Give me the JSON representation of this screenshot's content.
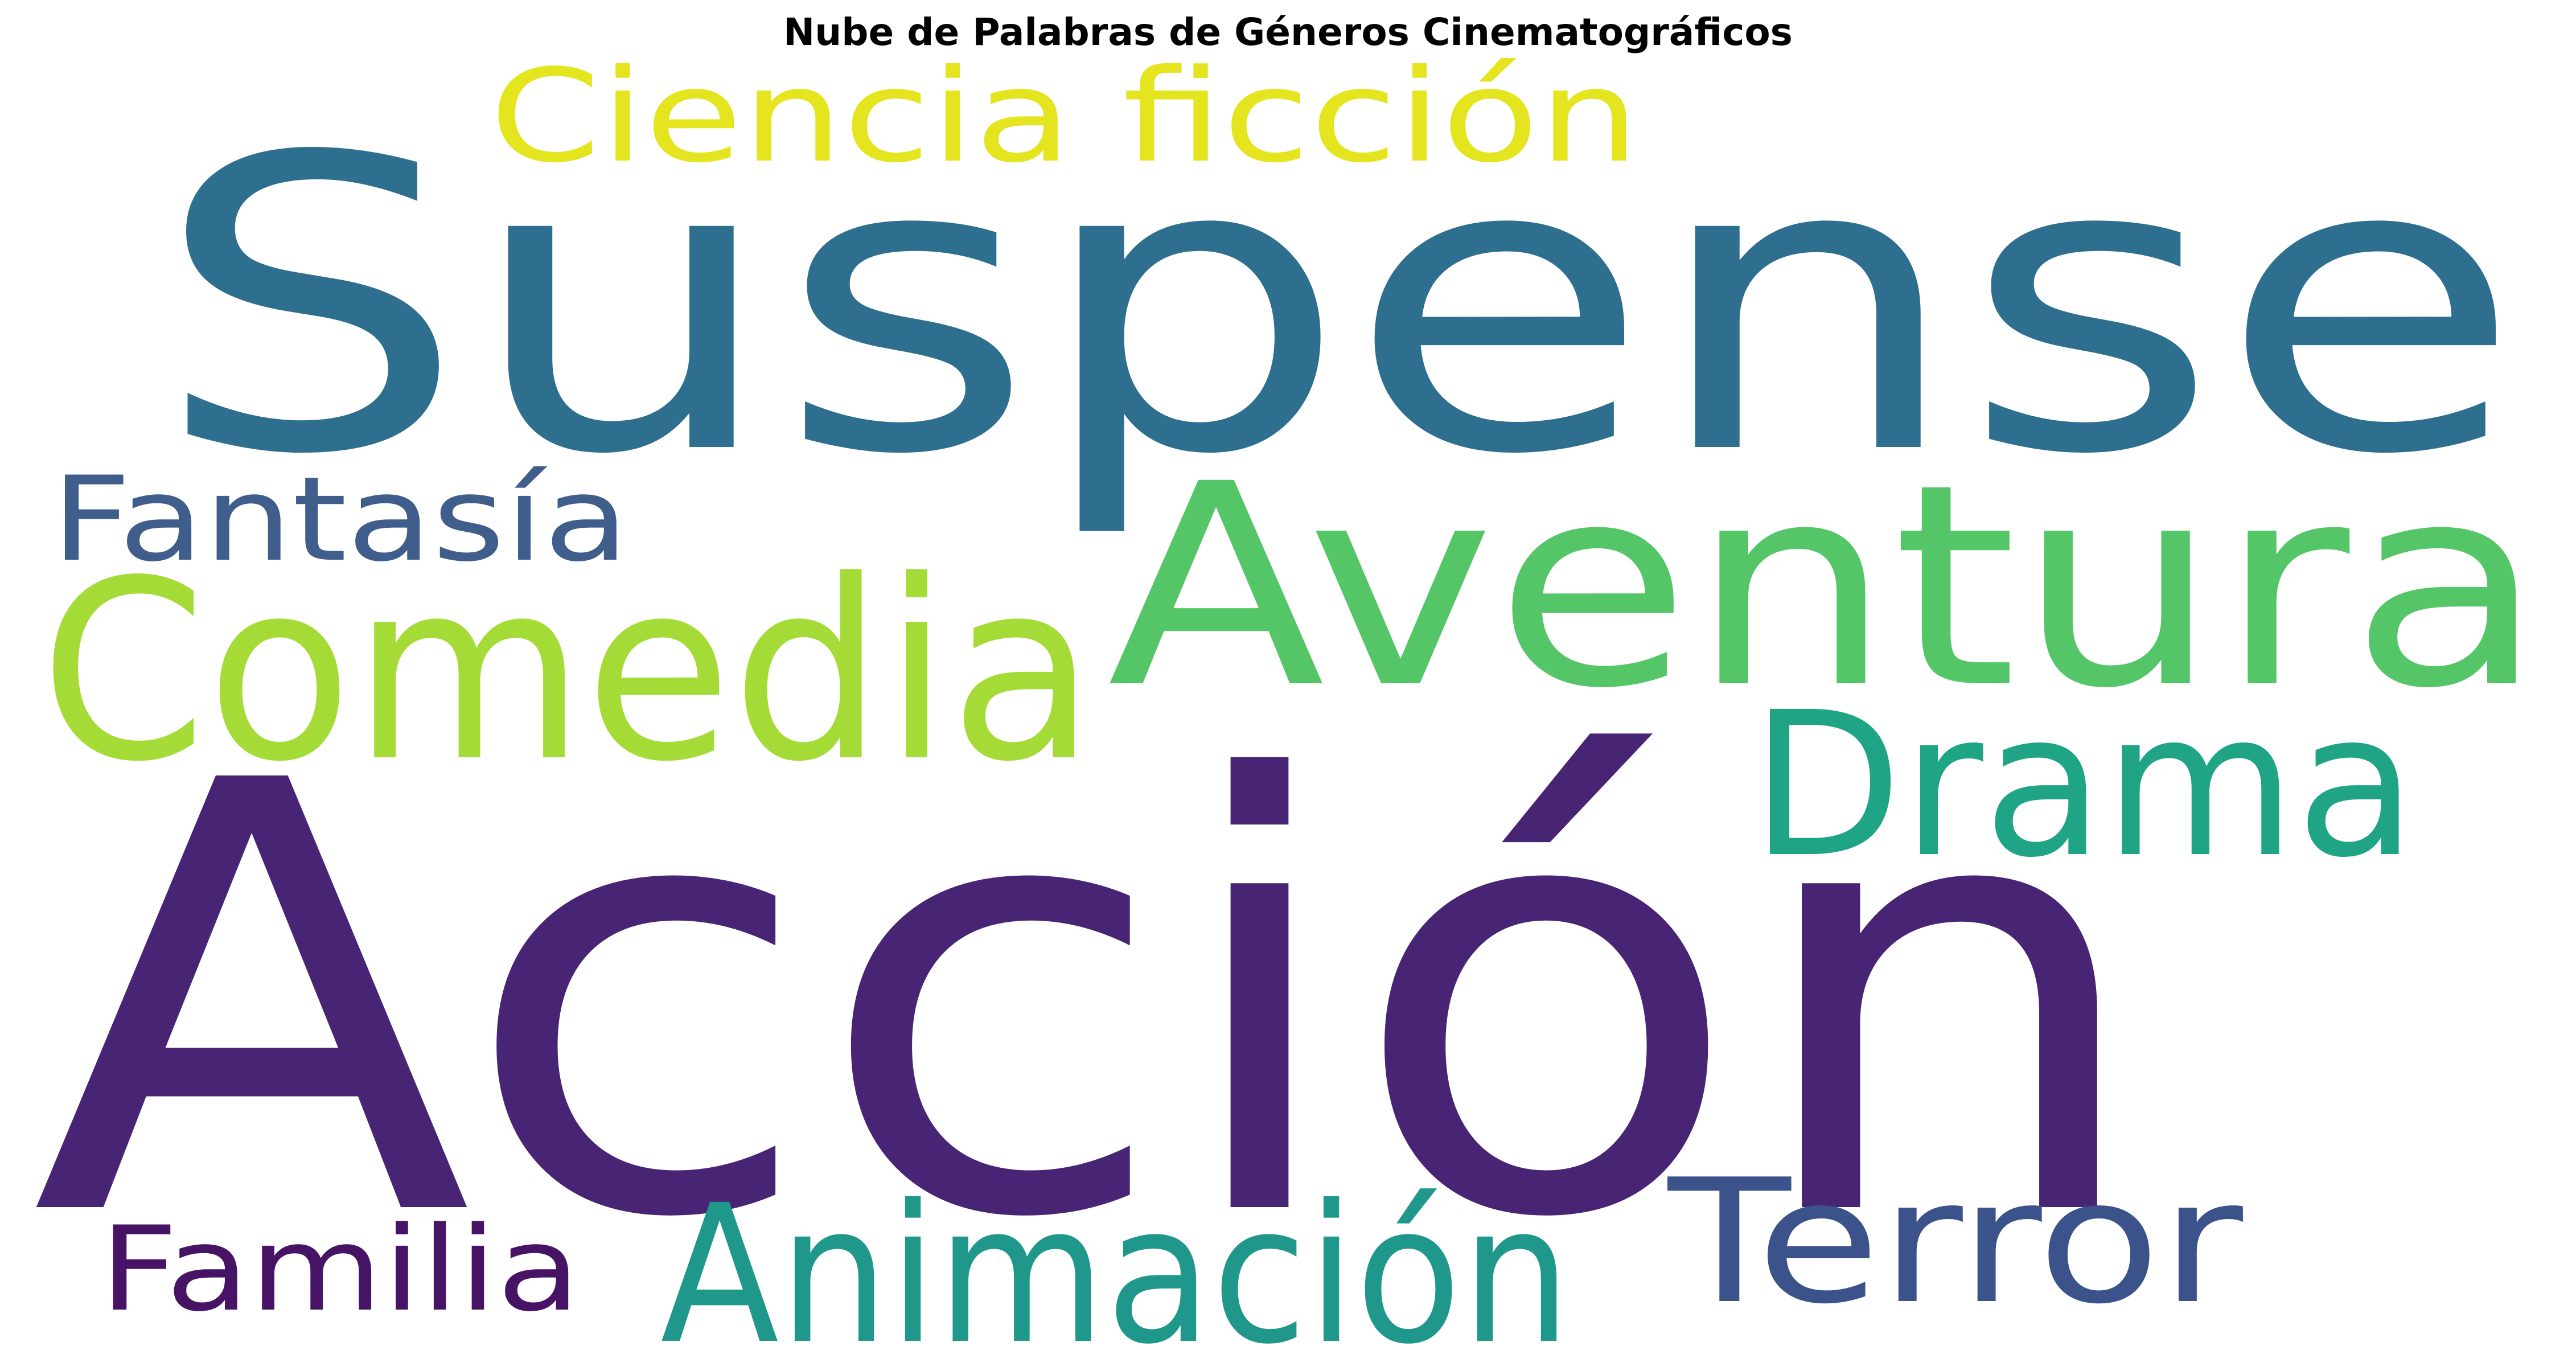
{
  "chart_data": {
    "type": "wordcloud",
    "title": "Nube de Palabras de Géneros Cinematográficos",
    "words": [
      {
        "text": "Suspense",
        "color": "#2e6e8e"
      },
      {
        "text": "Ciencia ficción",
        "color": "#e4e41f"
      },
      {
        "text": "Fantasía",
        "color": "#3f5e8c"
      },
      {
        "text": "Aventura",
        "color": "#55c667"
      },
      {
        "text": "Comedia",
        "color": "#a5db36"
      },
      {
        "text": "Drama",
        "color": "#20a486"
      },
      {
        "text": "Acción",
        "color": "#482475"
      },
      {
        "text": "Familia",
        "color": "#471365"
      },
      {
        "text": "Animación",
        "color": "#1f988b"
      },
      {
        "text": "Terror",
        "color": "#3b528b"
      }
    ]
  }
}
